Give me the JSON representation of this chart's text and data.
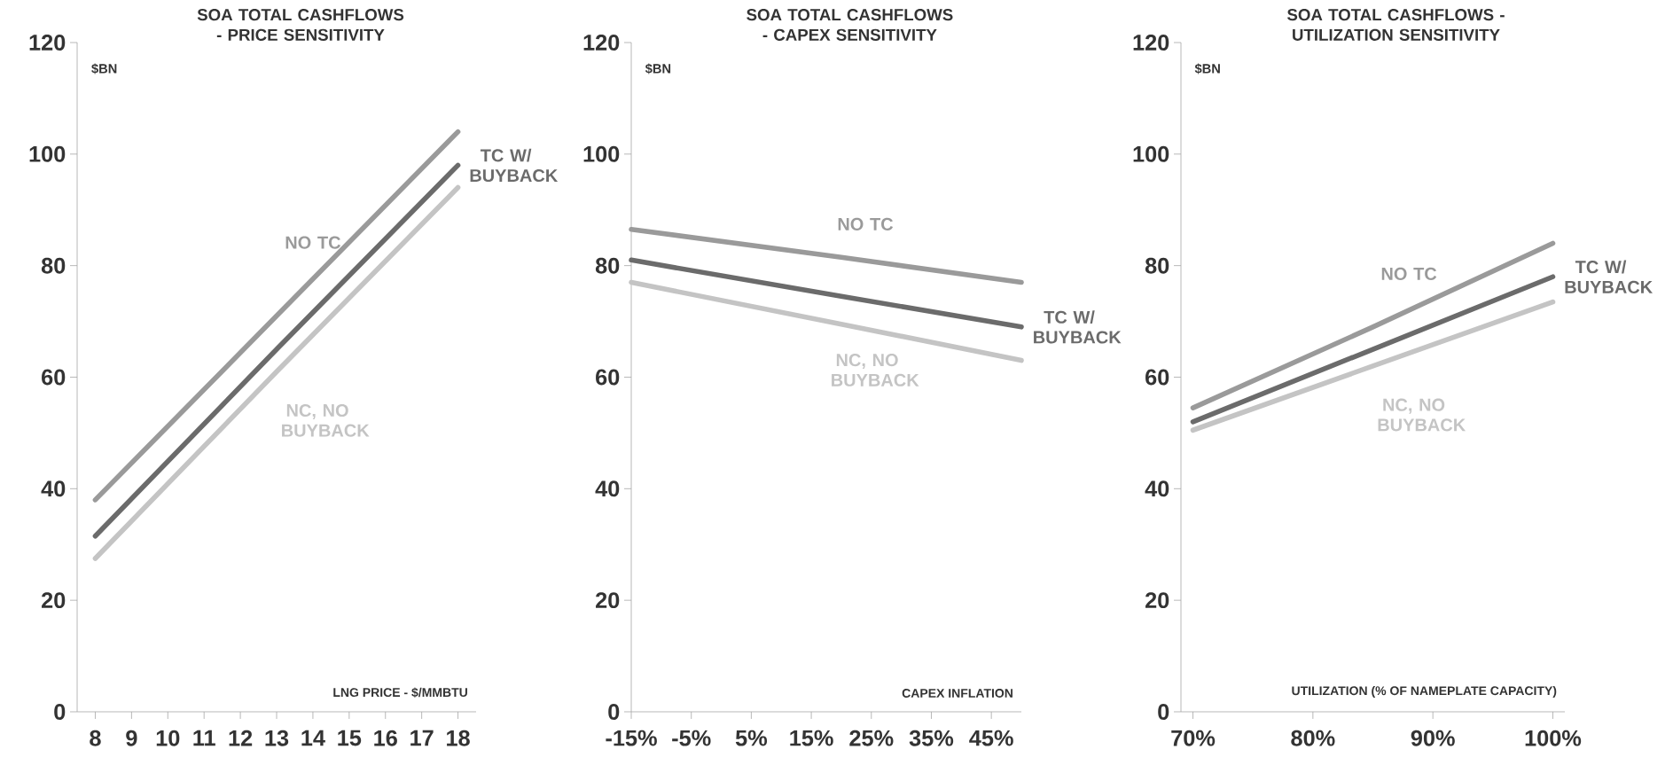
{
  "chart_data": [
    {
      "type": "line",
      "title": "SOA TOTAL CASHFLOWS - PRICE SENSITIVITY",
      "xlabel": "LNG PRICE - $/MMBTU",
      "ylabel": "$BN",
      "xlim": [
        7.5,
        18.5
      ],
      "xticks": [
        8,
        9,
        10,
        11,
        12,
        13,
        14,
        15,
        16,
        17,
        18
      ],
      "ylim": [
        0,
        120
      ],
      "yticks": [
        0,
        20,
        40,
        60,
        80,
        100,
        120
      ],
      "series": [
        {
          "name": "NO TC",
          "color": "#9a9a9a",
          "x": [
            8,
            13,
            18
          ],
          "values": [
            38,
            71,
            104
          ]
        },
        {
          "name": "TC W/ BUYBACK",
          "color": "#6b6b6b",
          "x": [
            8,
            13,
            18
          ],
          "values": [
            31.5,
            65,
            98
          ]
        },
        {
          "name": "NC, NO BUYBACK",
          "color": "#c4c4c4",
          "x": [
            8,
            13,
            18
          ],
          "values": [
            27.5,
            61,
            94
          ]
        }
      ]
    },
    {
      "type": "line",
      "title": "SOA TOTAL CASHFLOWS - CAPEX SENSITIVITY",
      "xlabel": "CAPEX INFLATION",
      "ylabel": "$BN",
      "xlim": [
        -15,
        50
      ],
      "xticks": [
        {
          "value": -15,
          "label": "-15%"
        },
        {
          "value": -5,
          "label": "-5%"
        },
        {
          "value": 5,
          "label": "5%"
        },
        {
          "value": 15,
          "label": "15%"
        },
        {
          "value": 25,
          "label": "25%"
        },
        {
          "value": 35,
          "label": "35%"
        },
        {
          "value": 45,
          "label": "45%"
        }
      ],
      "ylim": [
        0,
        120
      ],
      "yticks": [
        0,
        20,
        40,
        60,
        80,
        100,
        120
      ],
      "series": [
        {
          "name": "NO TC",
          "color": "#9a9a9a",
          "x": [
            -15,
            20,
            50
          ],
          "values": [
            86.5,
            81.5,
            77
          ]
        },
        {
          "name": "TC W/ BUYBACK",
          "color": "#6b6b6b",
          "x": [
            -15,
            20,
            50
          ],
          "values": [
            81,
            74.5,
            69
          ]
        },
        {
          "name": "NC, NO BUYBACK",
          "color": "#c4c4c4",
          "x": [
            -15,
            20,
            50
          ],
          "values": [
            77,
            69.5,
            63
          ]
        }
      ]
    },
    {
      "type": "line",
      "title": "SOA TOTAL CASHFLOWS - UTILIZATION SENSITIVITY",
      "xlabel": "UTILIZATION (% OF NAMEPLATE CAPACITY)",
      "ylabel": "$BN",
      "xlim": [
        69,
        101
      ],
      "xticks": [
        {
          "value": 70,
          "label": "70%"
        },
        {
          "value": 80,
          "label": "80%"
        },
        {
          "value": 90,
          "label": "90%"
        },
        {
          "value": 100,
          "label": "100%"
        }
      ],
      "ylim": [
        0,
        120
      ],
      "yticks": [
        0,
        20,
        40,
        60,
        80,
        100,
        120
      ],
      "series": [
        {
          "name": "NO TC",
          "color": "#9a9a9a",
          "x": [
            70,
            85,
            100
          ],
          "values": [
            54.5,
            69,
            84
          ]
        },
        {
          "name": "TC W/ BUYBACK",
          "color": "#6b6b6b",
          "x": [
            70,
            85,
            100
          ],
          "values": [
            52,
            65,
            78
          ]
        },
        {
          "name": "NC, NO BUYBACK",
          "color": "#c4c4c4",
          "x": [
            70,
            85,
            100
          ],
          "values": [
            50.5,
            62,
            73.5
          ]
        }
      ]
    }
  ]
}
